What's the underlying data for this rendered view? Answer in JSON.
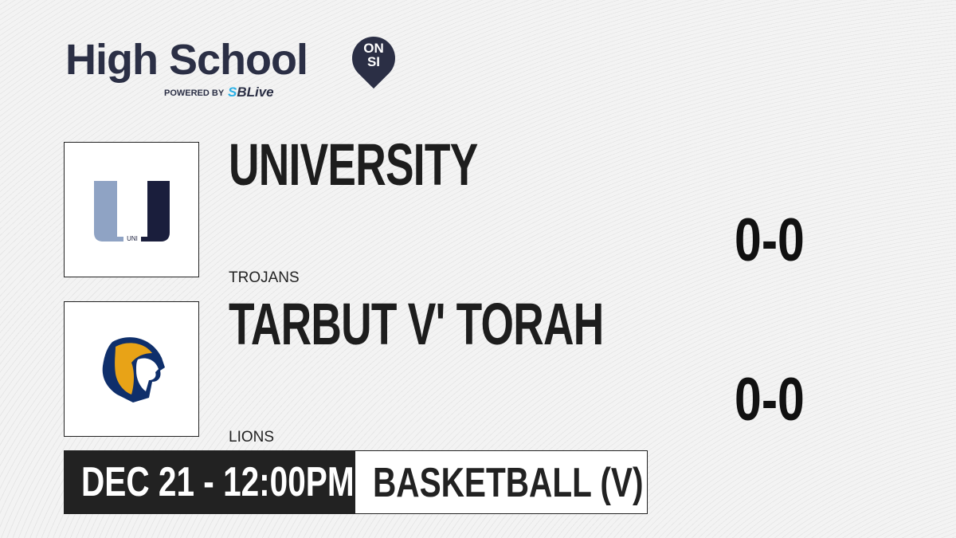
{
  "brand": {
    "title": "High School",
    "badge_top": "ON",
    "badge_bottom": "SI",
    "powered_by": "POWERED BY",
    "partner_prefix": "S",
    "partner": "SBLive"
  },
  "teams": [
    {
      "name": "UNIVERSITY",
      "mascot": "TROJANS",
      "score": "0-0",
      "logo_text": "UNI",
      "colors": {
        "light": "#8fa3c4",
        "dark": "#1a1e3c"
      }
    },
    {
      "name": "TARBUT V' TORAH",
      "mascot": "LIONS",
      "score": "0-0",
      "colors": {
        "blue": "#0f2f6b",
        "gold": "#e8a317"
      }
    }
  ],
  "game": {
    "datetime": "DEC 21 - 12:00PM",
    "sport": "BASKETBALL (V)"
  }
}
